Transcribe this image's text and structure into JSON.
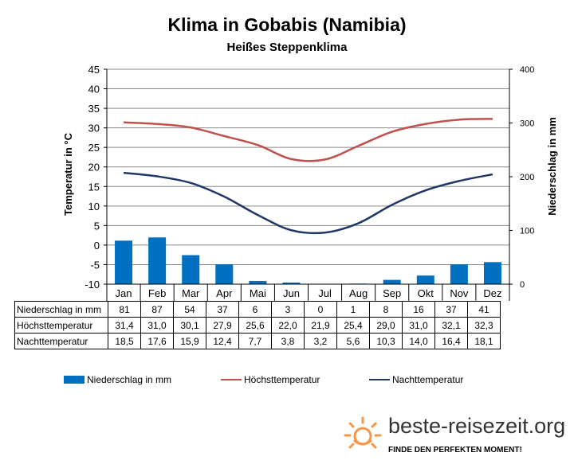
{
  "header": {
    "title": "Klima in Gobabis (Namibia)",
    "subtitle": "Heißes Steppenklima"
  },
  "chart_data": {
    "type": "bar+line",
    "categories": [
      "Jan",
      "Feb",
      "Mar",
      "Apr",
      "Mai",
      "Jun",
      "Jul",
      "Aug",
      "Sep",
      "Okt",
      "Nov",
      "Dez"
    ],
    "series": [
      {
        "name": "Niederschlag in mm",
        "type": "bar",
        "axis": "right",
        "color": "#0070c0",
        "values": [
          81,
          87,
          54,
          37,
          6,
          3,
          0,
          1,
          8,
          16,
          37,
          41
        ]
      },
      {
        "name": "Höchsttemperatur",
        "type": "line",
        "axis": "left",
        "color": "#c0504d",
        "values": [
          31.4,
          31.0,
          30.1,
          27.9,
          25.6,
          22.0,
          21.9,
          25.4,
          29.0,
          31.0,
          32.1,
          32.3
        ]
      },
      {
        "name": "Nachttemperatur",
        "type": "line",
        "axis": "left",
        "color": "#1f3864",
        "values": [
          18.5,
          17.6,
          15.9,
          12.4,
          7.7,
          3.8,
          3.2,
          5.6,
          10.3,
          14.0,
          16.4,
          18.1
        ]
      }
    ],
    "ylabel": "Temperatur in °C",
    "y2label": "Niederschlag in mm",
    "ylim": [
      -10,
      45
    ],
    "y2lim": [
      0,
      400
    ],
    "yticks": [
      "45",
      "40",
      "35",
      "30",
      "25",
      "20",
      "15",
      "10",
      "5",
      "0",
      "-5",
      "-10"
    ],
    "y2ticks": [
      "400",
      "300",
      "200",
      "100",
      "0"
    ],
    "grid": true,
    "legend_position": "bottom"
  },
  "table": {
    "rows": [
      {
        "label": "Niederschlag in mm",
        "values": [
          "81",
          "87",
          "54",
          "37",
          "6",
          "3",
          "0",
          "1",
          "8",
          "16",
          "37",
          "41"
        ]
      },
      {
        "label": "Höchsttemperatur",
        "values": [
          "31,4",
          "31,0",
          "30,1",
          "27,9",
          "25,6",
          "22,0",
          "21,9",
          "25,4",
          "29,0",
          "31,0",
          "32,1",
          "32,3"
        ]
      },
      {
        "label": "Nachttemperatur",
        "values": [
          "18,5",
          "17,6",
          "15,9",
          "12,4",
          "7,7",
          "3,8",
          "3,2",
          "5,6",
          "10,3",
          "14,0",
          "16,4",
          "18,1"
        ]
      }
    ]
  },
  "legend": {
    "precip": "Niederschlag in mm",
    "high": "Höchsttemperatur",
    "low": "Nachttemperatur"
  },
  "brand": {
    "name": "beste-reisezeit.org",
    "slogan": "FINDE DEN PERFEKTEN MOMENT!",
    "logo_icon": "sun-icon",
    "logo_color": "#f79646"
  }
}
